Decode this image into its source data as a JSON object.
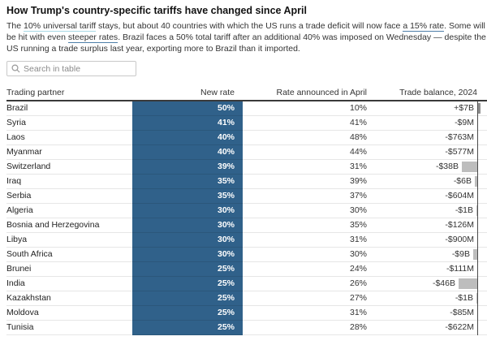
{
  "header": {
    "title": "How Trump's country-specific tariffs have changed since April"
  },
  "intro": {
    "segments": [
      {
        "text": "The ",
        "link": null
      },
      {
        "text": "10% universal tariff",
        "link": "light"
      },
      {
        "text": " stays, but about 40 countries with which the US runs a trade deficit will now face ",
        "link": null
      },
      {
        "text": "a 15% rate",
        "link": "dark"
      },
      {
        "text": ". Some will be hit with even ",
        "link": null
      },
      {
        "text": "steeper rates",
        "link": "dark"
      },
      {
        "text": ". Brazil faces a 50% total tariff after an additional 40% was imposed on Wednesday — despite the US running a trade surplus last year, exporting more to Brazil than it imported.",
        "link": null
      }
    ]
  },
  "search": {
    "placeholder": "Search in table",
    "value": ""
  },
  "colors": {
    "accent_blue": "#30618a",
    "bar_negative": "#bdbdbd",
    "bar_positive": "#8f8f8f",
    "link_underline_light": "#a8d9e6",
    "link_underline_dark": "#4d7ea8"
  },
  "chart_data": {
    "type": "table",
    "title": "How Trump's country-specific tariffs have changed since April",
    "columns": [
      "Trading partner",
      "New rate",
      "Rate announced in April",
      "Trade balance, 2024"
    ],
    "bar_column_note": "New rate column rendered as solid blue cells; Trade balance has diverging bars at right baseline (gray = deficit, dark = surplus), approx 0.5px per $1B",
    "rows": [
      {
        "country": "Brazil",
        "new_rate": "50%",
        "april_rate": "10%",
        "balance": "+$7B",
        "balance_billions": 7
      },
      {
        "country": "Syria",
        "new_rate": "41%",
        "april_rate": "41%",
        "balance": "-$9M",
        "balance_billions": -0.009
      },
      {
        "country": "Laos",
        "new_rate": "40%",
        "april_rate": "48%",
        "balance": "-$763M",
        "balance_billions": -0.763
      },
      {
        "country": "Myanmar",
        "new_rate": "40%",
        "april_rate": "44%",
        "balance": "-$577M",
        "balance_billions": -0.577
      },
      {
        "country": "Switzerland",
        "new_rate": "39%",
        "april_rate": "31%",
        "balance": "-$38B",
        "balance_billions": -38
      },
      {
        "country": "Iraq",
        "new_rate": "35%",
        "april_rate": "39%",
        "balance": "-$6B",
        "balance_billions": -6
      },
      {
        "country": "Serbia",
        "new_rate": "35%",
        "april_rate": "37%",
        "balance": "-$604M",
        "balance_billions": -0.604
      },
      {
        "country": "Algeria",
        "new_rate": "30%",
        "april_rate": "30%",
        "balance": "-$1B",
        "balance_billions": -1
      },
      {
        "country": "Bosnia and Herzegovina",
        "new_rate": "30%",
        "april_rate": "35%",
        "balance": "-$126M",
        "balance_billions": -0.126
      },
      {
        "country": "Libya",
        "new_rate": "30%",
        "april_rate": "31%",
        "balance": "-$900M",
        "balance_billions": -0.9
      },
      {
        "country": "South Africa",
        "new_rate": "30%",
        "april_rate": "30%",
        "balance": "-$9B",
        "balance_billions": -9
      },
      {
        "country": "Brunei",
        "new_rate": "25%",
        "april_rate": "24%",
        "balance": "-$111M",
        "balance_billions": -0.111
      },
      {
        "country": "India",
        "new_rate": "25%",
        "april_rate": "26%",
        "balance": "-$46B",
        "balance_billions": -46
      },
      {
        "country": "Kazakhstan",
        "new_rate": "25%",
        "april_rate": "27%",
        "balance": "-$1B",
        "balance_billions": -1
      },
      {
        "country": "Moldova",
        "new_rate": "25%",
        "april_rate": "31%",
        "balance": "-$85M",
        "balance_billions": -0.085
      },
      {
        "country": "Tunisia",
        "new_rate": "25%",
        "april_rate": "28%",
        "balance": "-$622M",
        "balance_billions": -0.622
      }
    ]
  }
}
